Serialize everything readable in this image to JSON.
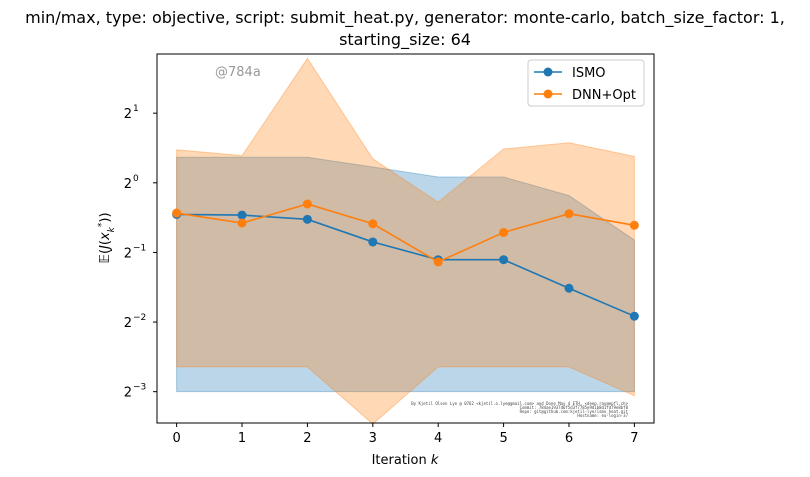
{
  "chart_data": {
    "type": "line",
    "title_line1": "min/max, type: objective, script: submit_heat.py, generator: monte-carlo, batch_size_factor: 1,",
    "title_line2": "starting_size: 64",
    "xlabel": "Iteration k",
    "ylabel": "E(J(x_k^*))",
    "yscale": "log2",
    "x": [
      0,
      1,
      2,
      3,
      4,
      5,
      6,
      7
    ],
    "xlim": [
      -0.3,
      7.3
    ],
    "ylim_log2": [
      -3.45,
      1.85
    ],
    "y_ticks": [
      {
        "log2": 1,
        "label": "2",
        "exp": "1"
      },
      {
        "log2": 0,
        "label": "2",
        "exp": "0"
      },
      {
        "log2": -1,
        "label": "2",
        "exp": "−1"
      },
      {
        "log2": -2,
        "label": "2",
        "exp": "−2"
      },
      {
        "log2": -3,
        "label": "2",
        "exp": "−3"
      }
    ],
    "x_tick_labels": [
      "0",
      "1",
      "2",
      "3",
      "4",
      "5",
      "6",
      "7"
    ],
    "series": [
      {
        "name": "ISMO",
        "color": "#1f77b4",
        "fill": "#1f77b4",
        "mean": [
          0.73,
          0.725,
          0.695,
          0.555,
          0.465,
          0.465,
          0.35,
          0.265
        ],
        "min": [
          0.125,
          0.125,
          0.125,
          0.125,
          0.125,
          0.125,
          0.125,
          0.125
        ],
        "max": [
          1.29,
          1.29,
          1.29,
          1.17,
          1.06,
          1.06,
          0.88,
          0.565
        ]
      },
      {
        "name": "DNN+Opt",
        "color": "#ff7f0e",
        "fill": "#ff7f0e",
        "mean": [
          0.74,
          0.67,
          0.81,
          0.665,
          0.455,
          0.61,
          0.735,
          0.655
        ],
        "min": [
          0.16,
          0.16,
          0.16,
          0.0905,
          0.16,
          0.16,
          0.16,
          0.12
        ],
        "max": [
          1.39,
          1.31,
          3.45,
          1.27,
          0.825,
          1.4,
          1.49,
          1.3
        ]
      }
    ],
    "legend_position": "upper right",
    "grid": false
  },
  "watermark": "@784a",
  "footnote": [
    "By Kjetil Olsen Lye @ 0762 <kjetil.o.lye@gmail.com> and Done May 4 ETH, <deep.ray@epfl.ch>",
    "Commit: 784ae1937d6f5d3f7785e9d1b8d1fd79e8bf0",
    "Repo: git@github.com:kjetil-lye/ismo_heat.git",
    "Hostname: eu-login-37"
  ]
}
